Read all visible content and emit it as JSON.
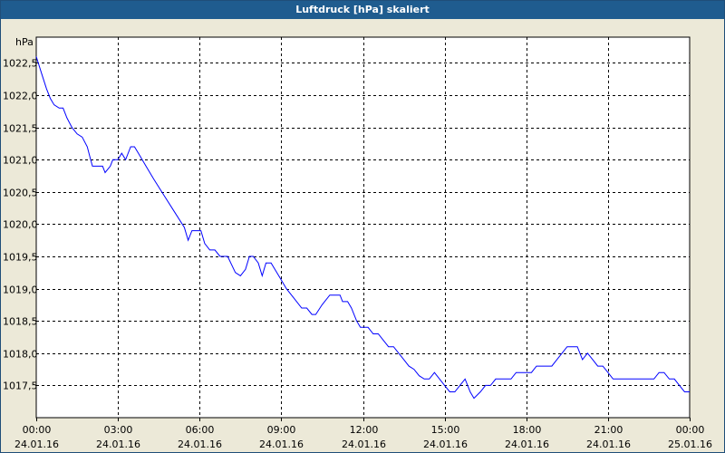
{
  "window": {
    "title": "Luftdruck [hPa] skaliert"
  },
  "chart_data": {
    "type": "line",
    "title": "Luftdruck [hPa] skaliert",
    "ylabel": "hPa",
    "xlabel": "",
    "ylim": [
      1017.0,
      1022.9
    ],
    "xlim": [
      "24.01.16 00:00",
      "25.01.16 00:00"
    ],
    "grid": true,
    "colors": {
      "line": "#0000ff",
      "grid": "#000000",
      "plot_bg": "#ffffff",
      "title_bg": "#1f5c8f"
    },
    "yticks": [
      {
        "value": 1017.5,
        "label": "1017,5"
      },
      {
        "value": 1018.0,
        "label": "1018,0"
      },
      {
        "value": 1018.5,
        "label": "1018,5"
      },
      {
        "value": 1019.0,
        "label": "1019,0"
      },
      {
        "value": 1019.5,
        "label": "1019,5"
      },
      {
        "value": 1020.0,
        "label": "1020,0"
      },
      {
        "value": 1020.5,
        "label": "1020,5"
      },
      {
        "value": 1021.0,
        "label": "1021,0"
      },
      {
        "value": 1021.5,
        "label": "1021,5"
      },
      {
        "value": 1022.0,
        "label": "1022,0"
      },
      {
        "value": 1022.5,
        "label": "1022,5"
      }
    ],
    "xticks": [
      {
        "time": "00:00",
        "date": "24.01.16",
        "hour": 0
      },
      {
        "time": "03:00",
        "date": "24.01.16",
        "hour": 3
      },
      {
        "time": "06:00",
        "date": "24.01.16",
        "hour": 6
      },
      {
        "time": "09:00",
        "date": "24.01.16",
        "hour": 9
      },
      {
        "time": "12:00",
        "date": "24.01.16",
        "hour": 12
      },
      {
        "time": "15:00",
        "date": "24.01.16",
        "hour": 15
      },
      {
        "time": "18:00",
        "date": "24.01.16",
        "hour": 18
      },
      {
        "time": "21:00",
        "date": "24.01.16",
        "hour": 21
      },
      {
        "time": "00:00",
        "date": "25.01.16",
        "hour": 24
      }
    ],
    "series": [
      {
        "values": [
          [
            0.0,
            1022.6
          ],
          [
            0.2,
            1022.35
          ],
          [
            0.4,
            1022.1
          ],
          [
            0.55,
            1021.95
          ],
          [
            0.7,
            1021.85
          ],
          [
            0.9,
            1021.8
          ],
          [
            1.05,
            1021.8
          ],
          [
            1.2,
            1021.65
          ],
          [
            1.4,
            1021.5
          ],
          [
            1.6,
            1021.4
          ],
          [
            1.8,
            1021.35
          ],
          [
            2.0,
            1021.2
          ],
          [
            2.1,
            1021.05
          ],
          [
            2.2,
            1020.9
          ],
          [
            2.5,
            1020.9
          ],
          [
            2.6,
            1020.9
          ],
          [
            2.7,
            1020.8
          ],
          [
            2.9,
            1020.9
          ],
          [
            3.0,
            1021.0
          ],
          [
            3.2,
            1021.0
          ],
          [
            3.35,
            1021.1
          ],
          [
            3.5,
            1021.0
          ],
          [
            3.7,
            1021.2
          ],
          [
            3.85,
            1021.2
          ],
          [
            4.0,
            1021.1
          ],
          [
            4.3,
            1020.9
          ],
          [
            4.6,
            1020.7
          ],
          [
            5.0,
            1020.45
          ],
          [
            5.4,
            1020.2
          ],
          [
            5.8,
            1019.95
          ],
          [
            5.95,
            1019.75
          ],
          [
            6.1,
            1019.9
          ],
          [
            6.45,
            1019.9
          ],
          [
            6.6,
            1019.7
          ],
          [
            6.8,
            1019.6
          ],
          [
            7.0,
            1019.6
          ],
          [
            7.2,
            1019.5
          ],
          [
            7.5,
            1019.5
          ],
          [
            7.8,
            1019.25
          ],
          [
            8.0,
            1019.2
          ],
          [
            8.2,
            1019.3
          ],
          [
            8.35,
            1019.5
          ],
          [
            8.5,
            1019.5
          ],
          [
            8.7,
            1019.4
          ],
          [
            8.85,
            1019.2
          ],
          [
            9.0,
            1019.4
          ],
          [
            9.2,
            1019.4
          ],
          [
            9.5,
            1019.2
          ],
          [
            9.8,
            1019.0
          ],
          [
            10.1,
            1018.85
          ],
          [
            10.4,
            1018.7
          ],
          [
            10.6,
            1018.7
          ],
          [
            10.8,
            1018.6
          ],
          [
            10.95,
            1018.6
          ],
          [
            11.2,
            1018.75
          ],
          [
            11.5,
            1018.9
          ],
          [
            11.9,
            1018.9
          ],
          [
            12.0,
            1018.8
          ],
          [
            12.2,
            1018.8
          ],
          [
            12.35,
            1018.7
          ],
          [
            12.55,
            1018.5
          ],
          [
            12.7,
            1018.4
          ],
          [
            13.0,
            1018.4
          ],
          [
            13.2,
            1018.3
          ],
          [
            13.4,
            1018.3
          ],
          [
            13.6,
            1018.2
          ],
          [
            13.8,
            1018.1
          ],
          [
            14.0,
            1018.1
          ],
          [
            14.2,
            1018.0
          ],
          [
            14.4,
            1017.9
          ],
          [
            14.6,
            1017.8
          ],
          [
            14.8,
            1017.75
          ],
          [
            15.0,
            1017.65
          ],
          [
            15.2,
            1017.6
          ],
          [
            15.4,
            1017.6
          ],
          [
            15.6,
            1017.7
          ],
          [
            15.8,
            1017.6
          ],
          [
            16.0,
            1017.5
          ],
          [
            16.2,
            1017.4
          ],
          [
            16.4,
            1017.4
          ],
          [
            16.6,
            1017.5
          ],
          [
            16.8,
            1017.6
          ],
          [
            17.0,
            1017.4
          ],
          [
            17.15,
            1017.3
          ],
          [
            17.4,
            1017.4
          ],
          [
            17.6,
            1017.5
          ],
          [
            17.8,
            1017.5
          ],
          [
            18.0,
            1017.6
          ],
          [
            18.6,
            1017.6
          ],
          [
            18.8,
            1017.7
          ],
          [
            19.4,
            1017.7
          ],
          [
            19.6,
            1017.8
          ],
          [
            20.2,
            1017.8
          ],
          [
            20.4,
            1017.9
          ],
          [
            20.6,
            1018.0
          ],
          [
            20.8,
            1018.1
          ],
          [
            21.2,
            1018.1
          ],
          [
            21.4,
            1017.9
          ],
          [
            21.6,
            1018.0
          ],
          [
            21.8,
            1017.9
          ],
          [
            22.0,
            1017.8
          ],
          [
            22.2,
            1017.8
          ],
          [
            22.4,
            1017.7
          ],
          [
            22.6,
            1017.6
          ],
          [
            22.8,
            1017.6
          ],
          [
            24.2,
            1017.6
          ],
          [
            24.4,
            1017.7
          ],
          [
            24.6,
            1017.7
          ],
          [
            24.8,
            1017.6
          ],
          [
            25.0,
            1017.6
          ],
          [
            25.2,
            1017.5
          ],
          [
            25.4,
            1017.4
          ],
          [
            25.6,
            1017.4
          ]
        ],
        "color": "#0000ff"
      }
    ]
  }
}
